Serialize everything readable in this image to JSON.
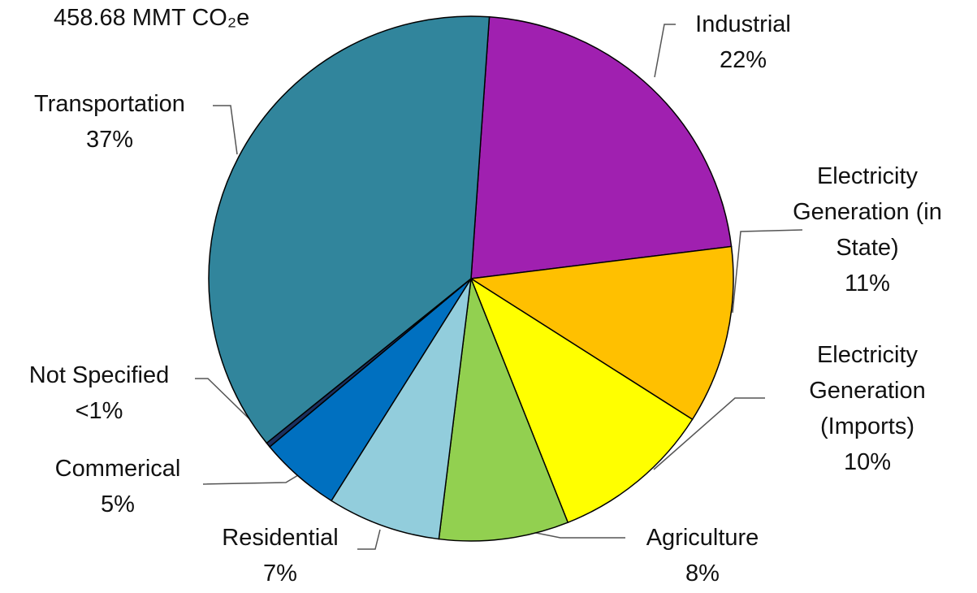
{
  "chart_data": {
    "type": "pie",
    "title": "458.68 MMT CO₂e",
    "categories": [
      "Industrial",
      "Electricity Generation (in State)",
      "Electricity Generation (Imports)",
      "Agriculture",
      "Residential",
      "Commerical",
      "Not Specified",
      "Transportation"
    ],
    "values": [
      22,
      11,
      10,
      8,
      7,
      5,
      0.3,
      37
    ],
    "value_labels": [
      "22%",
      "11%",
      "10%",
      "8%",
      "7%",
      "5%",
      "<1%",
      "37%"
    ],
    "colors": [
      "#a020b0",
      "#ffc000",
      "#ffff00",
      "#92d050",
      "#92cddc",
      "#0070c0",
      "#1b2f5e",
      "#31859c"
    ]
  }
}
